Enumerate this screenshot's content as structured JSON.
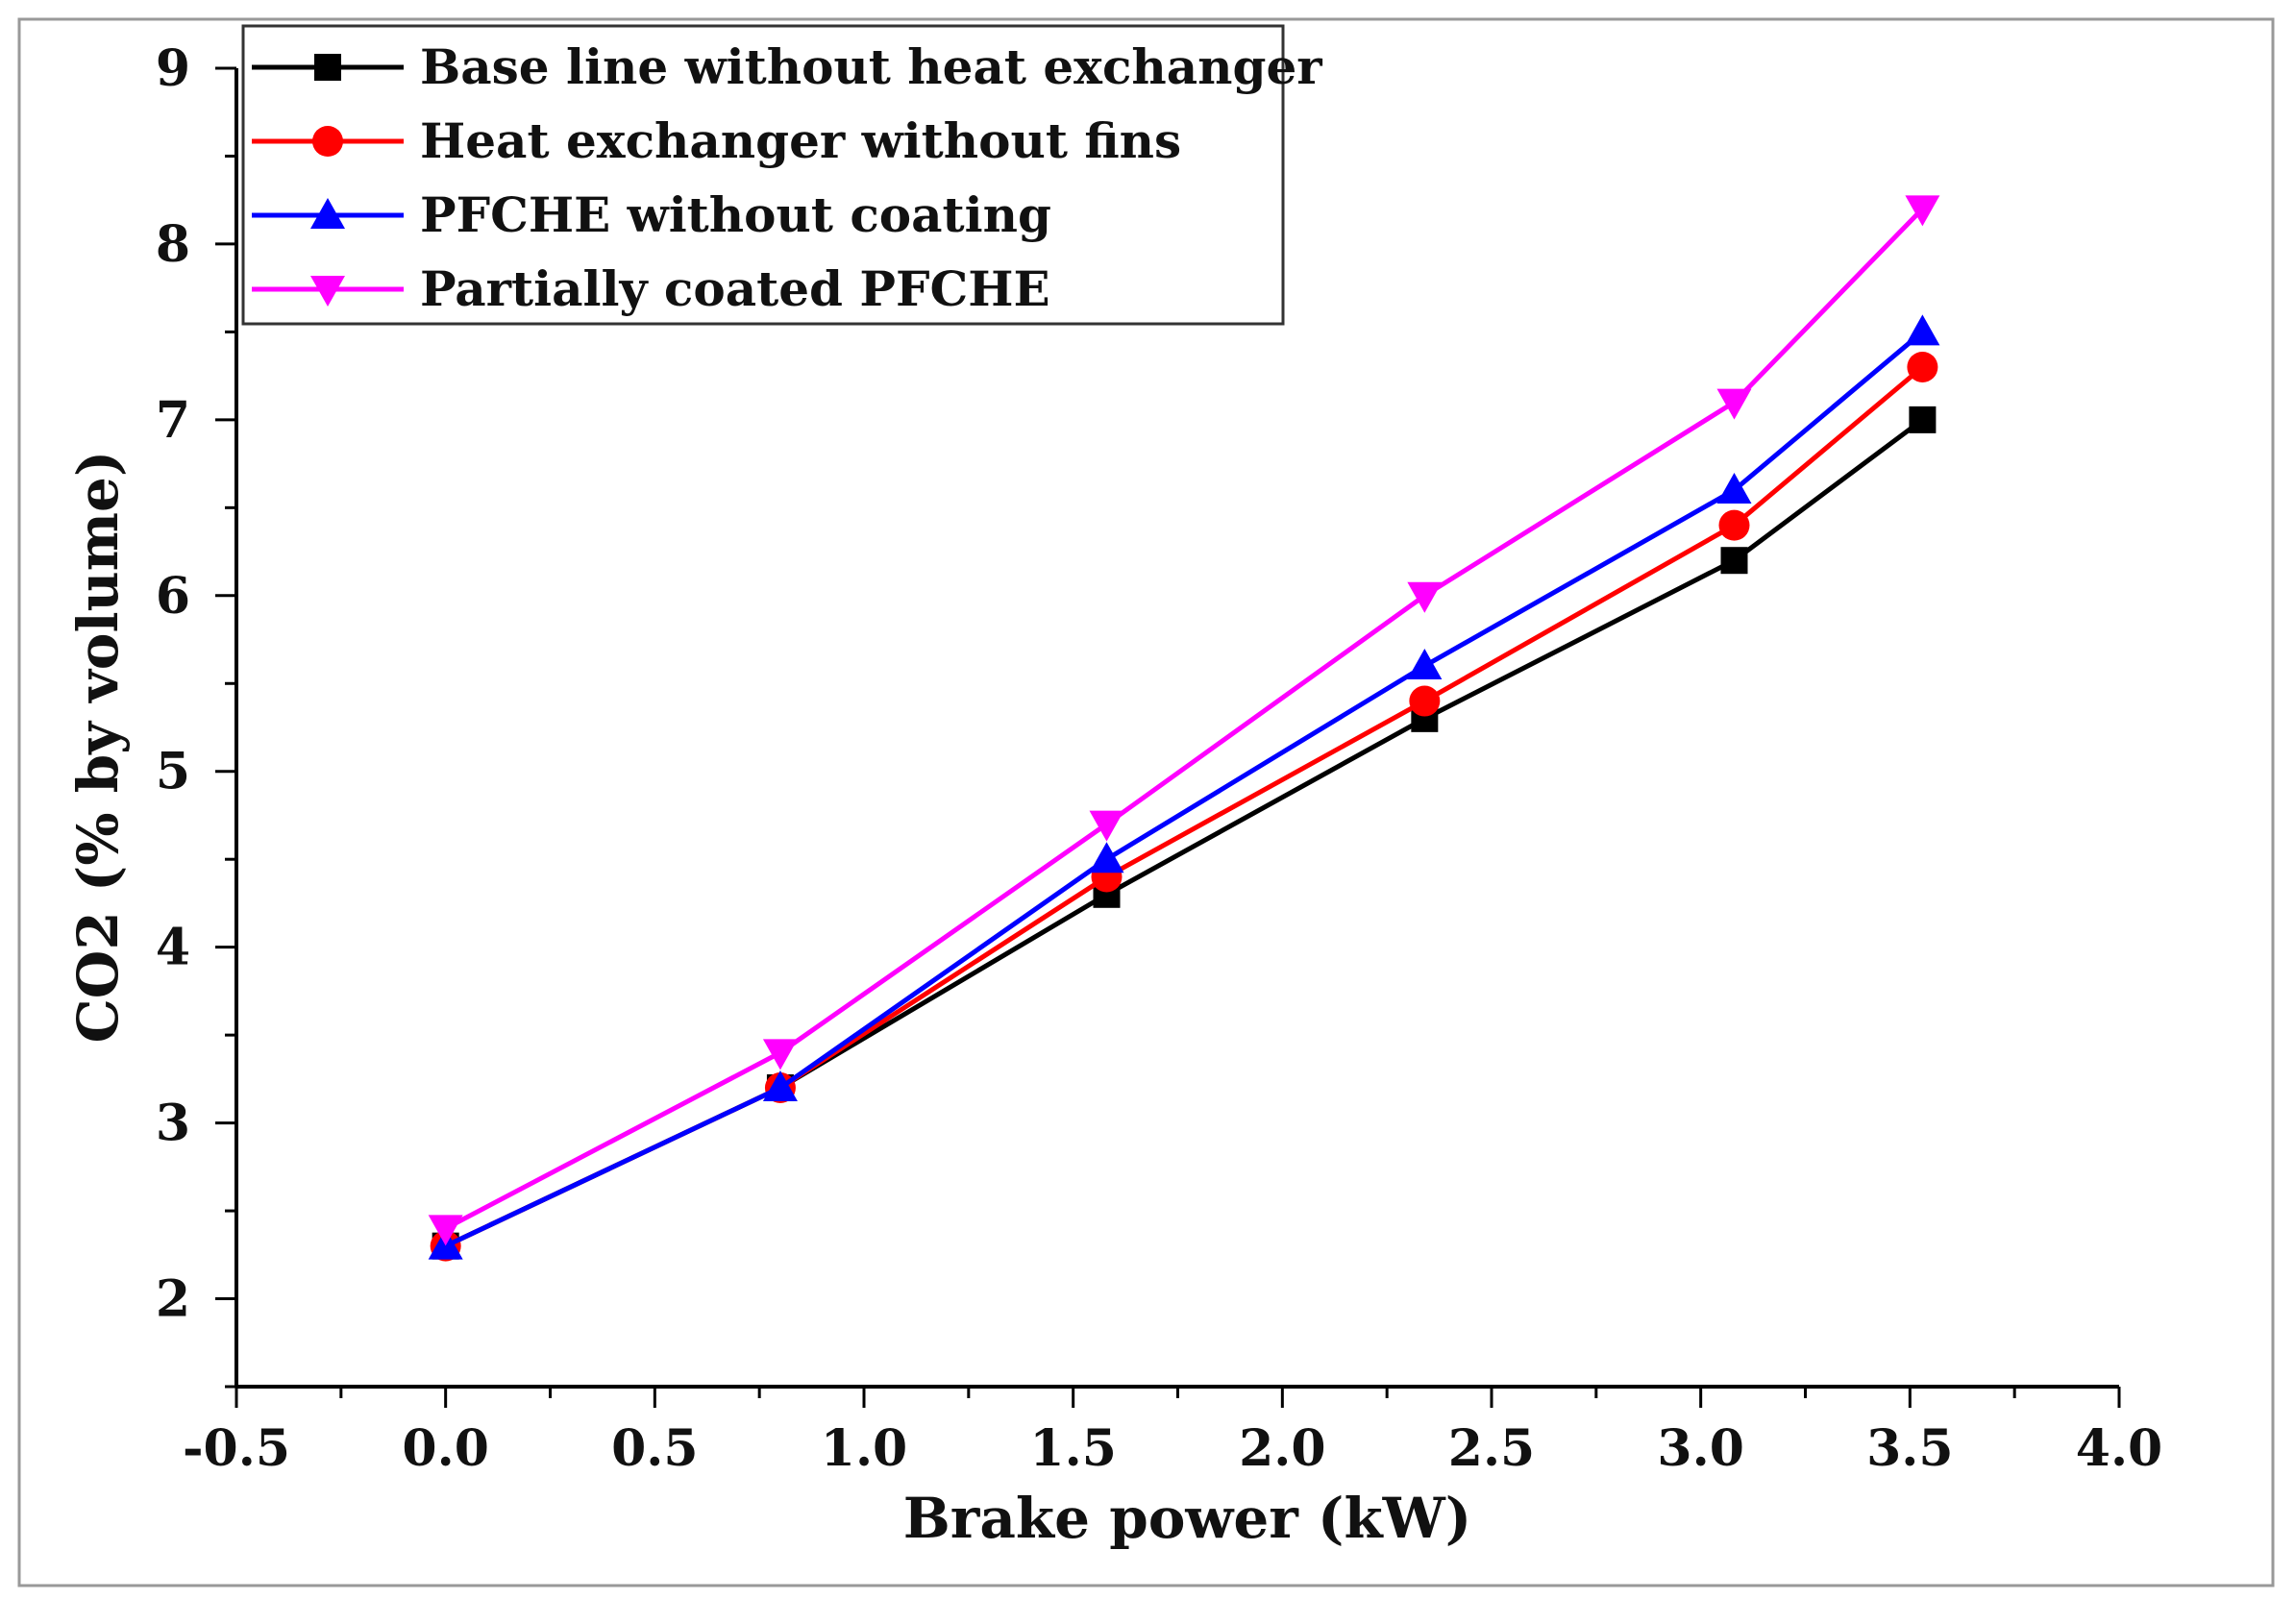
{
  "chart_data": {
    "type": "line",
    "title": "",
    "xlabel": "Brake power (kW)",
    "ylabel": "CO2 (% by volume)",
    "xlim": [
      -0.5,
      4.0
    ],
    "ylim": [
      1.5,
      9.0
    ],
    "xticks": [
      -0.5,
      0.0,
      0.5,
      1.0,
      1.5,
      2.0,
      2.5,
      3.0,
      3.5,
      4.0
    ],
    "xtick_labels": [
      "-0.5",
      "0.0",
      "0.5",
      "1.0",
      "1.5",
      "2.0",
      "2.5",
      "3.0",
      "3.5",
      "4.0"
    ],
    "yticks": [
      2,
      3,
      4,
      5,
      6,
      7,
      8,
      9
    ],
    "ytick_labels": [
      "2",
      "3",
      "4",
      "5",
      "6",
      "7",
      "8",
      "9"
    ],
    "grid": false,
    "legend_position": "top-left",
    "x": [
      0.0,
      0.8,
      1.58,
      2.34,
      3.08,
      3.53
    ],
    "series": [
      {
        "name": "Base line without heat exchanger",
        "color": "#000000",
        "marker": "square",
        "values": [
          2.3,
          3.2,
          4.3,
          5.3,
          6.2,
          7.0
        ]
      },
      {
        "name": "Heat exchanger without fins",
        "color": "#ff0000",
        "marker": "circle",
        "values": [
          2.3,
          3.2,
          4.4,
          5.4,
          6.4,
          7.3
        ]
      },
      {
        "name": "PFCHE without coating",
        "color": "#0000ff",
        "marker": "triangle-up",
        "values": [
          2.3,
          3.2,
          4.5,
          5.6,
          6.6,
          7.5
        ]
      },
      {
        "name": "Partially coated PFCHE",
        "color": "#ff00ff",
        "marker": "triangle-down",
        "values": [
          2.4,
          3.4,
          4.7,
          6.0,
          7.1,
          8.2
        ]
      }
    ]
  }
}
